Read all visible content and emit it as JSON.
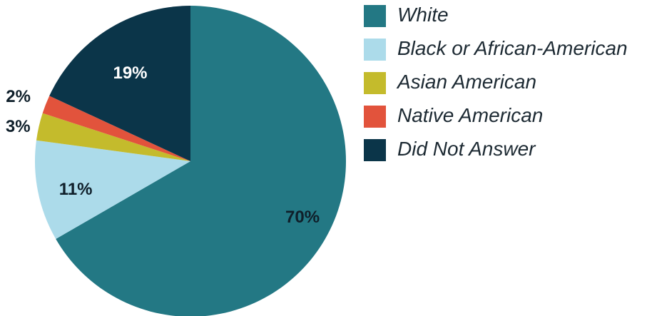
{
  "chart_data": {
    "type": "pie",
    "title": "",
    "categories": [
      "White",
      "Black or African-American",
      "Asian American",
      "Native American",
      "Did Not Answer"
    ],
    "values": [
      70,
      11,
      3,
      2,
      19
    ],
    "labels": [
      "70%",
      "11%",
      "3%",
      "2%",
      "19%"
    ],
    "colors": [
      "#237884",
      "#acdbea",
      "#c4bb2c",
      "#e2533c",
      "#0b3549"
    ],
    "label_colors": [
      "#0f1f2a",
      "#0f1f2a",
      "#0f1f2a",
      "#0f1f2a",
      "#ffffff"
    ],
    "start_angle_deg": 0,
    "direction": "clockwise",
    "legend_placement": "right"
  }
}
